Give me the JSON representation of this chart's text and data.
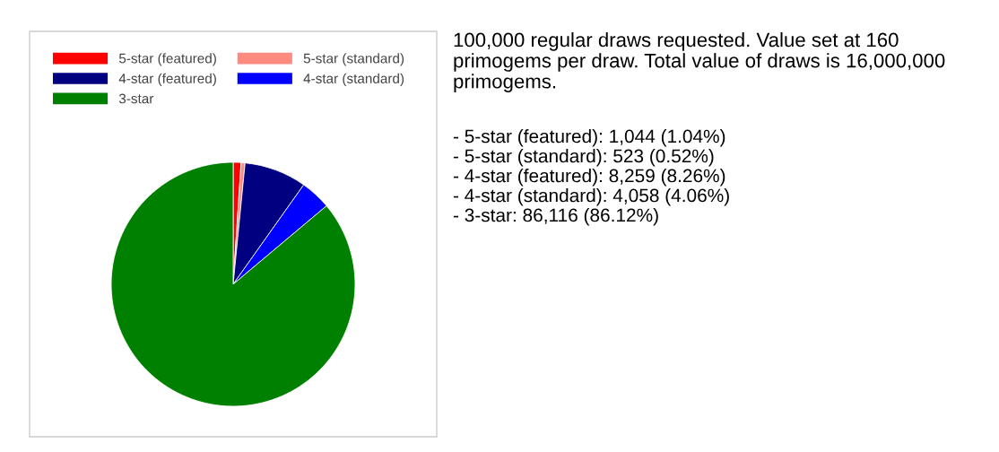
{
  "chart_data": {
    "type": "pie",
    "categories": [
      "5-star (featured)",
      "5-star (standard)",
      "4-star (featured)",
      "4-star (standard)",
      "3-star"
    ],
    "values": [
      1.04,
      0.52,
      8.26,
      4.06,
      86.12
    ],
    "colors": [
      "#ff0000",
      "#ff8a80",
      "#000080",
      "#0000ff",
      "#008000"
    ],
    "legend": "top",
    "annotations": [
      "100,000 regular draws requested. Value set at 160 primogems per draw. Total value of draws is 16,000,000 primogems.",
      "- 5-star (featured): 1,044 (1.04%)",
      "- 5-star (standard): 523 (0.52%)",
      "- 4-star (featured): 8,259 (8.26%)",
      "- 4-star (standard): 4,058 (4.06%)",
      "- 3-star: 86,116 (86.12%)"
    ]
  }
}
